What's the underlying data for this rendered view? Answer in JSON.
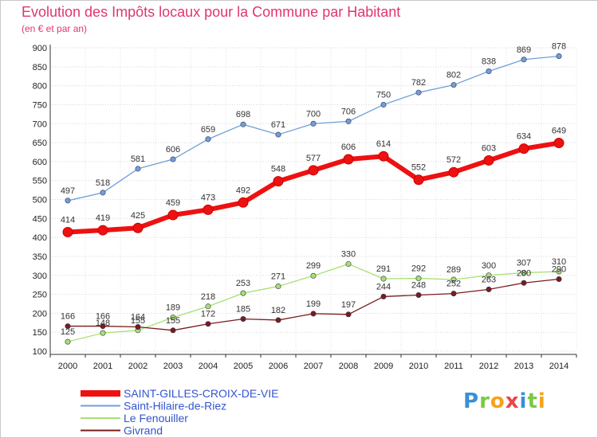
{
  "chart_data": {
    "type": "line",
    "title": "Evolution des Impôts locaux pour la Commune par Habitant",
    "subtitle": "(en € et par an)",
    "x": [
      "2000",
      "2001",
      "2002",
      "2003",
      "2004",
      "2005",
      "2006",
      "2007",
      "2008",
      "2009",
      "2010",
      "2011",
      "2012",
      "2013",
      "2014"
    ],
    "ylim": [
      100,
      900
    ],
    "yticks": [
      100,
      150,
      200,
      250,
      300,
      350,
      400,
      450,
      500,
      550,
      600,
      650,
      700,
      750,
      800,
      850,
      900
    ],
    "grid": true,
    "legend_position": "bottom-left",
    "series": [
      {
        "name": "SAINT-GILLES-CROIX-DE-VIE",
        "color": "#ee1111",
        "values": [
          414,
          419,
          425,
          459,
          473,
          492,
          548,
          577,
          606,
          614,
          552,
          572,
          603,
          634,
          649
        ]
      },
      {
        "name": "Saint-Hilaire-de-Riez",
        "color": "#6f9fd8",
        "values": [
          497,
          518,
          581,
          606,
          659,
          698,
          671,
          700,
          706,
          750,
          782,
          802,
          838,
          869,
          878
        ]
      },
      {
        "name": "Le Fenouiller",
        "color": "#a8e070",
        "values": [
          125,
          148,
          155,
          189,
          218,
          253,
          271,
          299,
          330,
          291,
          292,
          289,
          300,
          307,
          310
        ]
      },
      {
        "name": "Givrand",
        "color": "#7a1c1c",
        "values": [
          166,
          166,
          164,
          155,
          172,
          185,
          182,
          199,
          197,
          244,
          248,
          252,
          263,
          280,
          290
        ]
      }
    ]
  },
  "logo": {
    "letters": [
      "P",
      "r",
      "o",
      "x",
      "i",
      "t",
      "i"
    ],
    "colors": [
      "#3a8fd8",
      "#7ac943",
      "#f7a21b",
      "#ee4444",
      "#3a8fd8",
      "#7ac943",
      "#f7a21b"
    ]
  }
}
